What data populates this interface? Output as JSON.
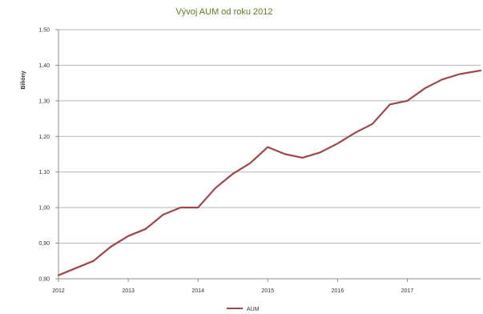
{
  "chart_data": {
    "type": "line",
    "title": "Vývoj AUM od roku 2012",
    "ylabel": "Bilióny",
    "xlabel": "",
    "ylim": [
      0.8,
      1.5
    ],
    "xlim": [
      2012,
      2018.05
    ],
    "yticks": [
      0.8,
      0.9,
      1.0,
      1.1,
      1.2,
      1.3,
      1.4,
      1.5
    ],
    "ytick_labels": [
      "0,80",
      "0,90",
      "1,00",
      "1,10",
      "1,20",
      "1,30",
      "1,40",
      "1,50"
    ],
    "xticks": [
      2012,
      2013,
      2014,
      2015,
      2016,
      2017
    ],
    "xtick_labels": [
      "2012",
      "2013",
      "2014",
      "2015",
      "2016",
      "2017"
    ],
    "grid": "horizontal",
    "legend_position": "bottom",
    "series": [
      {
        "name": "AUM",
        "color": "#a0454a",
        "x": [
          2012.0,
          2012.25,
          2012.5,
          2012.75,
          2013.0,
          2013.25,
          2013.5,
          2013.75,
          2014.0,
          2014.25,
          2014.5,
          2014.75,
          2015.0,
          2015.25,
          2015.5,
          2015.75,
          2016.0,
          2016.25,
          2016.5,
          2016.75,
          2017.0,
          2017.25,
          2017.5,
          2017.75,
          2018.05
        ],
        "y": [
          0.81,
          0.83,
          0.85,
          0.89,
          0.92,
          0.94,
          0.98,
          1.0,
          1.0,
          1.055,
          1.095,
          1.125,
          1.17,
          1.15,
          1.14,
          1.155,
          1.18,
          1.21,
          1.235,
          1.29,
          1.3,
          1.335,
          1.36,
          1.375,
          1.385
        ]
      }
    ]
  }
}
